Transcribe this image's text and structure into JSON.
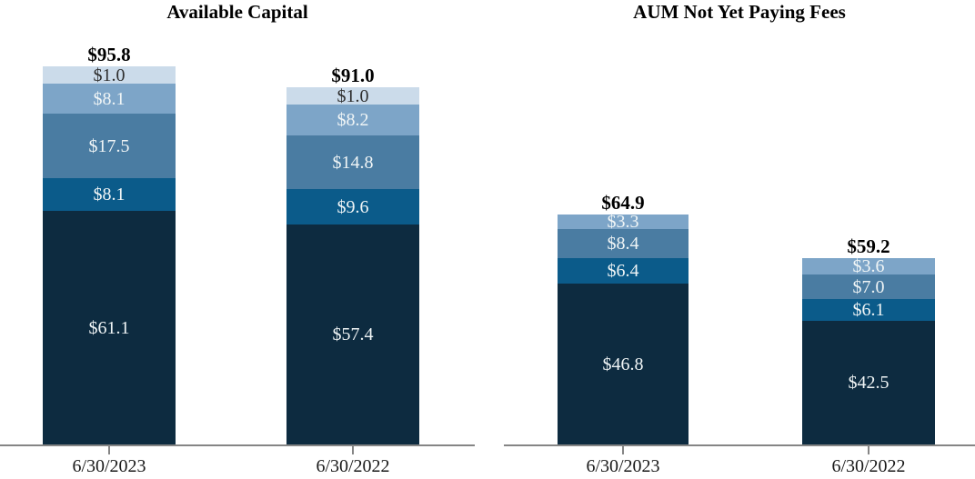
{
  "page": {
    "background": "#ffffff"
  },
  "palette": {
    "navy": "#0d2b40",
    "dark_blue": "#0b5b8a",
    "steel_blue": "#4a7ca2",
    "light_blue": "#7da5c8",
    "pale_blue": "#cbdbea"
  },
  "text_colors": {
    "segment_light": "#f0f5f6",
    "segment_dark": "#2e2e2e",
    "total": "#000000",
    "axis_label": "#1a1a1a"
  },
  "axis": {
    "color": "#858585"
  },
  "chart_data": [
    {
      "type": "bar",
      "stacked": true,
      "title": "Available Capital",
      "categories": [
        "6/30/2023",
        "6/30/2022"
      ],
      "totals": [
        95.8,
        91.0
      ],
      "layout_hints": {
        "y_axis": "hidden",
        "grid": "off",
        "legend": "none",
        "value_labels": "inside segments",
        "total_labels": "above bars"
      },
      "stacks": [
        {
          "category": "6/30/2023",
          "total": 95.8,
          "total_label": "$95.8",
          "segments": [
            {
              "value": 61.1,
              "label": "$61.1",
              "color": "navy",
              "text": "light"
            },
            {
              "value": 8.1,
              "label": "$8.1",
              "color": "dark_blue",
              "text": "light"
            },
            {
              "value": 17.5,
              "label": "$17.5",
              "color": "steel_blue",
              "text": "light"
            },
            {
              "value": 8.1,
              "label": "$8.1",
              "color": "light_blue",
              "text": "light"
            },
            {
              "value": 1.0,
              "label": "$1.0",
              "color": "pale_blue",
              "text": "dark"
            }
          ]
        },
        {
          "category": "6/30/2022",
          "total": 91.0,
          "total_label": "$91.0",
          "segments": [
            {
              "value": 57.4,
              "label": "$57.4",
              "color": "navy",
              "text": "light"
            },
            {
              "value": 9.6,
              "label": "$9.6",
              "color": "dark_blue",
              "text": "light"
            },
            {
              "value": 14.8,
              "label": "$14.8",
              "color": "steel_blue",
              "text": "light"
            },
            {
              "value": 8.2,
              "label": "$8.2",
              "color": "light_blue",
              "text": "light"
            },
            {
              "value": 1.0,
              "label": "$1.0",
              "color": "pale_blue",
              "text": "dark"
            }
          ]
        }
      ]
    },
    {
      "type": "bar",
      "stacked": true,
      "title": "AUM Not Yet Paying Fees",
      "categories": [
        "6/30/2023",
        "6/30/2022"
      ],
      "totals": [
        64.9,
        59.2
      ],
      "layout_hints": {
        "y_axis": "hidden",
        "grid": "off",
        "legend": "none",
        "value_labels": "inside segments",
        "total_labels": "above bars"
      },
      "stacks": [
        {
          "category": "6/30/2023",
          "total": 64.9,
          "total_label": "$64.9",
          "segments": [
            {
              "value": 46.8,
              "label": "$46.8",
              "color": "navy",
              "text": "light"
            },
            {
              "value": 6.4,
              "label": "$6.4",
              "color": "dark_blue",
              "text": "light"
            },
            {
              "value": 8.4,
              "label": "$8.4",
              "color": "steel_blue",
              "text": "light"
            },
            {
              "value": 3.3,
              "label": "$3.3",
              "color": "light_blue",
              "text": "light"
            }
          ]
        },
        {
          "category": "6/30/2022",
          "total": 59.2,
          "total_label": "$59.2",
          "segments": [
            {
              "value": 42.5,
              "label": "$42.5",
              "color": "navy",
              "text": "light"
            },
            {
              "value": 6.1,
              "label": "$6.1",
              "color": "dark_blue",
              "text": "light"
            },
            {
              "value": 7.0,
              "label": "$7.0",
              "color": "steel_blue",
              "text": "light"
            },
            {
              "value": 3.6,
              "label": "$3.6",
              "color": "light_blue",
              "text": "light"
            }
          ]
        }
      ]
    }
  ]
}
